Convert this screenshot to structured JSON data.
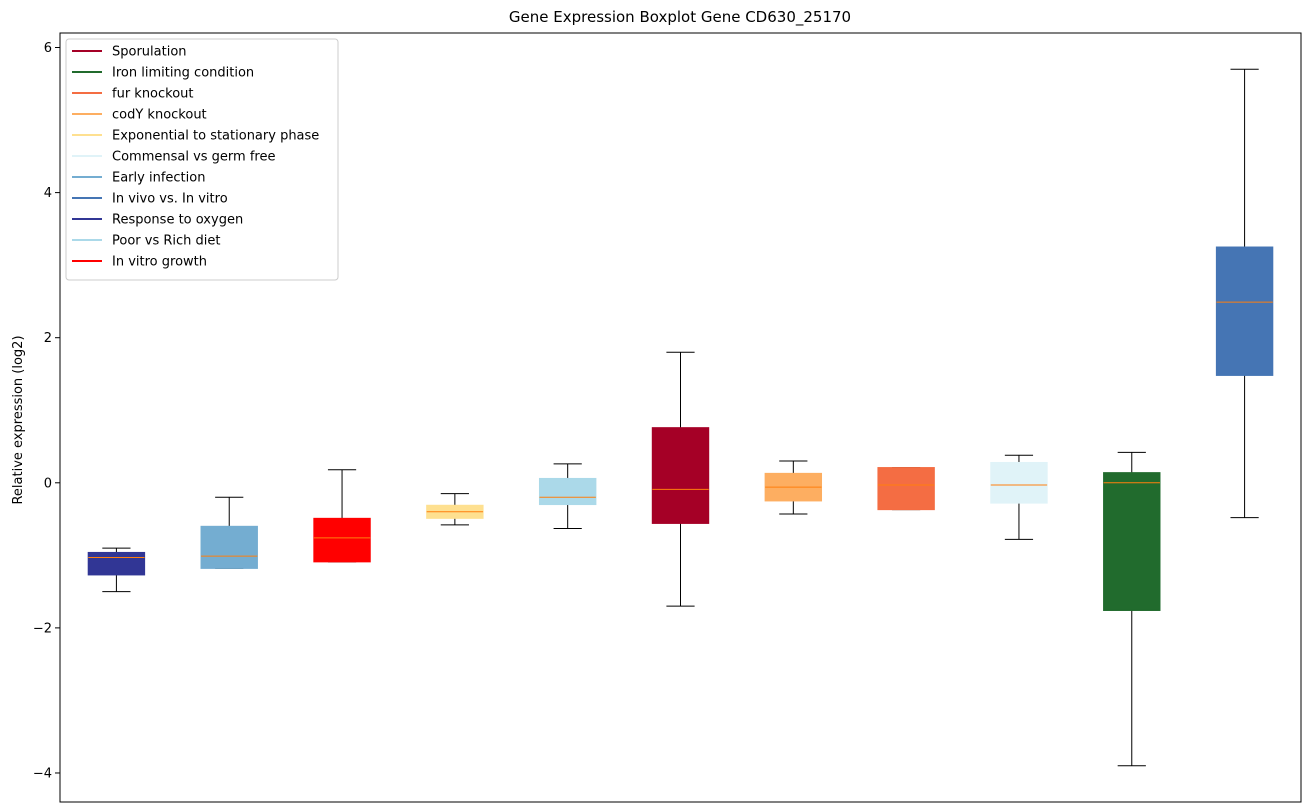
{
  "chart_data": {
    "type": "boxplot",
    "title": "Gene Expression Boxplot Gene CD630_25170",
    "xlabel": "",
    "ylabel": "Relative expression (log2)",
    "ylim": [
      -4.4,
      6.2
    ],
    "yticks": [
      -4,
      -2,
      0,
      2,
      4,
      6
    ],
    "ytick_labels": [
      "−4",
      "−2",
      "0",
      "2",
      "4",
      "6"
    ],
    "grid": false,
    "legend_position": "top-left",
    "legend": [
      {
        "label": "Sporulation",
        "color": "#a50026"
      },
      {
        "label": "Iron limiting condition",
        "color": "#216b2d"
      },
      {
        "label": "fur knockout",
        "color": "#f46d43"
      },
      {
        "label": "codY knockout",
        "color": "#fdae61"
      },
      {
        "label": "Exponential to stationary phase",
        "color": "#fee090"
      },
      {
        "label": "Commensal vs germ free",
        "color": "#e0f3f8"
      },
      {
        "label": "Early infection",
        "color": "#74add1"
      },
      {
        "label": "In vivo vs. In vitro",
        "color": "#4575b4"
      },
      {
        "label": "Response to oxygen",
        "color": "#313695"
      },
      {
        "label": "Poor vs Rich diet",
        "color": "#abd9e9"
      },
      {
        "label": "In vitro growth",
        "color": "#ff0000"
      }
    ],
    "median_color": "#ff7f0e",
    "boxes": [
      {
        "condition": "Response to oxygen",
        "color": "#313695",
        "whisker_low": -1.5,
        "q1": -1.27,
        "median": -1.03,
        "q3": -0.96,
        "whisker_high": -0.9
      },
      {
        "condition": "Early infection",
        "color": "#74add1",
        "whisker_low": -1.18,
        "q1": -1.18,
        "median": -1.01,
        "q3": -0.6,
        "whisker_high": -0.2
      },
      {
        "condition": "In vitro growth",
        "color": "#ff0000",
        "whisker_low": -1.09,
        "q1": -1.09,
        "median": -0.76,
        "q3": -0.49,
        "whisker_high": 0.18
      },
      {
        "condition": "Exponential to stationary phase",
        "color": "#fee090",
        "whisker_low": -0.58,
        "q1": -0.49,
        "median": -0.4,
        "q3": -0.31,
        "whisker_high": -0.15
      },
      {
        "condition": "Poor vs Rich diet",
        "color": "#abd9e9",
        "whisker_low": -0.63,
        "q1": -0.3,
        "median": -0.2,
        "q3": 0.06,
        "whisker_high": 0.26
      },
      {
        "condition": "Sporulation",
        "color": "#a50026",
        "whisker_low": -1.7,
        "q1": -0.56,
        "median": -0.09,
        "q3": 0.76,
        "whisker_high": 1.8
      },
      {
        "condition": "codY knockout",
        "color": "#fdae61",
        "whisker_low": -0.43,
        "q1": -0.25,
        "median": -0.06,
        "q3": 0.13,
        "whisker_high": 0.3
      },
      {
        "condition": "fur knockout",
        "color": "#f46d43",
        "whisker_low": -0.37,
        "q1": -0.37,
        "median": -0.03,
        "q3": 0.21,
        "whisker_high": 0.21
      },
      {
        "condition": "Commensal vs germ free",
        "color": "#e0f3f8",
        "whisker_low": -0.78,
        "q1": -0.28,
        "median": -0.03,
        "q3": 0.28,
        "whisker_high": 0.38
      },
      {
        "condition": "Iron limiting condition",
        "color": "#216b2d",
        "whisker_low": -3.9,
        "q1": -1.76,
        "median": 0.0,
        "q3": 0.14,
        "whisker_high": 0.42
      },
      {
        "condition": "In vivo vs. In vitro",
        "color": "#4575b4",
        "whisker_low": -0.48,
        "q1": 1.48,
        "median": 2.49,
        "q3": 3.25,
        "whisker_high": 5.7
      }
    ]
  }
}
